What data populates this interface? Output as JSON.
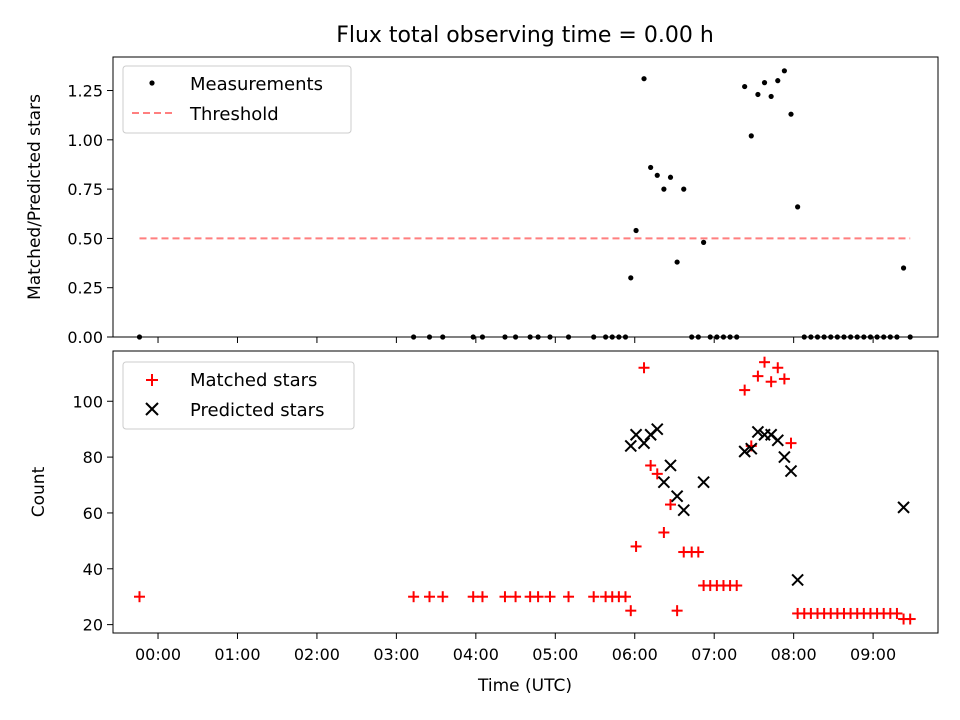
{
  "chart_data": [
    {
      "type": "scatter",
      "title": "Flux total observing time = 0.00 h",
      "xlabel": "",
      "ylabel": "Matched/Predicted stars",
      "ylim": [
        0,
        1.42
      ],
      "yticks": [
        0,
        0.25,
        0.5,
        0.75,
        1.0,
        1.25
      ],
      "yticklabels": [
        "0.00",
        "0.25",
        "0.50",
        "0.75",
        "1.00",
        "1.25"
      ],
      "legend": {
        "placement": "top-left",
        "entries": [
          "Measurements",
          "Threshold"
        ]
      },
      "series": [
        {
          "name": "Measurements",
          "marker": "dot",
          "color": "#000000",
          "points": [
            [
              "23:46",
              0.0
            ],
            [
              "03:13",
              0.0
            ],
            [
              "03:25",
              0.0
            ],
            [
              "03:35",
              0.0
            ],
            [
              "03:58",
              0.0
            ],
            [
              "04:05",
              0.0
            ],
            [
              "04:22",
              0.0
            ],
            [
              "04:30",
              0.0
            ],
            [
              "04:41",
              0.0
            ],
            [
              "04:47",
              0.0
            ],
            [
              "04:56",
              0.0
            ],
            [
              "05:10",
              0.0
            ],
            [
              "05:29",
              0.0
            ],
            [
              "05:38",
              0.0
            ],
            [
              "05:43",
              0.0
            ],
            [
              "05:48",
              0.0
            ],
            [
              "05:53",
              0.0
            ],
            [
              "05:57",
              0.3
            ],
            [
              "06:01",
              0.54
            ],
            [
              "06:07",
              1.31
            ],
            [
              "06:12",
              0.86
            ],
            [
              "06:17",
              0.82
            ],
            [
              "06:22",
              0.75
            ],
            [
              "06:27",
              0.81
            ],
            [
              "06:32",
              0.38
            ],
            [
              "06:37",
              0.75
            ],
            [
              "06:43",
              0.0
            ],
            [
              "06:48",
              0.0
            ],
            [
              "06:52",
              0.48
            ],
            [
              "06:57",
              0.0
            ],
            [
              "07:02",
              0.0
            ],
            [
              "07:07",
              0.0
            ],
            [
              "07:12",
              0.0
            ],
            [
              "07:17",
              0.0
            ],
            [
              "07:23",
              1.27
            ],
            [
              "07:28",
              1.02
            ],
            [
              "07:33",
              1.23
            ],
            [
              "07:38",
              1.29
            ],
            [
              "07:43",
              1.22
            ],
            [
              "07:48",
              1.3
            ],
            [
              "07:53",
              1.35
            ],
            [
              "07:58",
              1.13
            ],
            [
              "08:03",
              0.66
            ],
            [
              "08:08",
              0.0
            ],
            [
              "08:13",
              0.0
            ],
            [
              "08:18",
              0.0
            ],
            [
              "08:23",
              0.0
            ],
            [
              "08:28",
              0.0
            ],
            [
              "08:33",
              0.0
            ],
            [
              "08:38",
              0.0
            ],
            [
              "08:43",
              0.0
            ],
            [
              "08:48",
              0.0
            ],
            [
              "08:53",
              0.0
            ],
            [
              "08:58",
              0.0
            ],
            [
              "09:03",
              0.0
            ],
            [
              "09:08",
              0.0
            ],
            [
              "09:13",
              0.0
            ],
            [
              "09:18",
              0.0
            ],
            [
              "09:23",
              0.35
            ],
            [
              "09:28",
              0.0
            ]
          ]
        },
        {
          "name": "Threshold",
          "marker": "dashed-line",
          "color": "#ff7f7f",
          "points": [
            [
              "23:46",
              0.5
            ],
            [
              "09:28",
              0.5
            ]
          ]
        }
      ]
    },
    {
      "type": "scatter",
      "title": "",
      "xlabel": "Time (UTC)",
      "ylabel": "Count",
      "ylim": [
        17,
        118
      ],
      "yticks": [
        20,
        40,
        60,
        80,
        100
      ],
      "yticklabels": [
        "20",
        "40",
        "60",
        "80",
        "100"
      ],
      "xlim": [
        "23:26",
        "09:49"
      ],
      "xticks": [
        "00:00",
        "01:00",
        "02:00",
        "03:00",
        "04:00",
        "05:00",
        "06:00",
        "07:00",
        "08:00",
        "09:00"
      ],
      "legend": {
        "placement": "top-left",
        "entries": [
          "Matched stars",
          "Predicted stars"
        ]
      },
      "series": [
        {
          "name": "Matched stars",
          "marker": "plus",
          "color": "#ff0000",
          "points": [
            [
              "23:46",
              30
            ],
            [
              "03:13",
              30
            ],
            [
              "03:25",
              30
            ],
            [
              "03:35",
              30
            ],
            [
              "03:58",
              30
            ],
            [
              "04:05",
              30
            ],
            [
              "04:22",
              30
            ],
            [
              "04:30",
              30
            ],
            [
              "04:41",
              30
            ],
            [
              "04:47",
              30
            ],
            [
              "04:56",
              30
            ],
            [
              "05:10",
              30
            ],
            [
              "05:29",
              30
            ],
            [
              "05:38",
              30
            ],
            [
              "05:43",
              30
            ],
            [
              "05:48",
              30
            ],
            [
              "05:53",
              30
            ],
            [
              "05:57",
              25
            ],
            [
              "06:01",
              48
            ],
            [
              "06:07",
              112
            ],
            [
              "06:12",
              77
            ],
            [
              "06:17",
              74
            ],
            [
              "06:22",
              53
            ],
            [
              "06:27",
              63
            ],
            [
              "06:32",
              25
            ],
            [
              "06:37",
              46
            ],
            [
              "06:43",
              46
            ],
            [
              "06:48",
              46
            ],
            [
              "06:52",
              34
            ],
            [
              "06:57",
              34
            ],
            [
              "07:02",
              34
            ],
            [
              "07:07",
              34
            ],
            [
              "07:12",
              34
            ],
            [
              "07:17",
              34
            ],
            [
              "07:23",
              104
            ],
            [
              "07:28",
              84
            ],
            [
              "07:33",
              109
            ],
            [
              "07:38",
              114
            ],
            [
              "07:43",
              107
            ],
            [
              "07:48",
              112
            ],
            [
              "07:53",
              108
            ],
            [
              "07:58",
              85
            ],
            [
              "08:03",
              24
            ],
            [
              "08:08",
              24
            ],
            [
              "08:13",
              24
            ],
            [
              "08:18",
              24
            ],
            [
              "08:23",
              24
            ],
            [
              "08:28",
              24
            ],
            [
              "08:33",
              24
            ],
            [
              "08:38",
              24
            ],
            [
              "08:43",
              24
            ],
            [
              "08:48",
              24
            ],
            [
              "08:53",
              24
            ],
            [
              "08:58",
              24
            ],
            [
              "09:03",
              24
            ],
            [
              "09:08",
              24
            ],
            [
              "09:13",
              24
            ],
            [
              "09:18",
              24
            ],
            [
              "09:23",
              22
            ],
            [
              "09:28",
              22
            ]
          ]
        },
        {
          "name": "Predicted stars",
          "marker": "x",
          "color": "#000000",
          "points": [
            [
              "05:57",
              84
            ],
            [
              "06:01",
              88
            ],
            [
              "06:07",
              85
            ],
            [
              "06:12",
              88
            ],
            [
              "06:17",
              90
            ],
            [
              "06:22",
              71
            ],
            [
              "06:27",
              77
            ],
            [
              "06:32",
              66
            ],
            [
              "06:37",
              61
            ],
            [
              "06:52",
              71
            ],
            [
              "07:23",
              82
            ],
            [
              "07:28",
              83
            ],
            [
              "07:33",
              89
            ],
            [
              "07:38",
              88
            ],
            [
              "07:43",
              88
            ],
            [
              "07:48",
              86
            ],
            [
              "07:53",
              80
            ],
            [
              "07:58",
              75
            ],
            [
              "08:03",
              36
            ],
            [
              "09:23",
              62
            ]
          ]
        }
      ]
    }
  ]
}
